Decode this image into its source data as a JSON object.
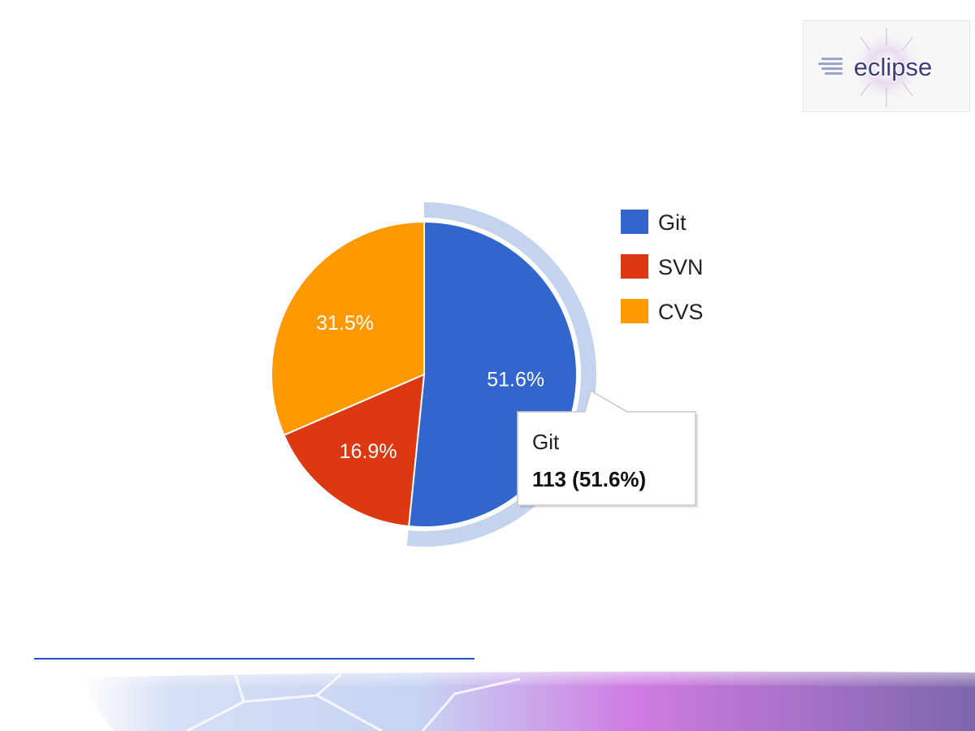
{
  "logo": {
    "text": "eclipse"
  },
  "chart_data": {
    "type": "pie",
    "series": [
      {
        "name": "Git",
        "value": 113,
        "percent": 51.6,
        "color": "#3366cc",
        "label": "51.6%"
      },
      {
        "name": "SVN",
        "percent": 16.9,
        "color": "#dc3912",
        "label": "16.9%"
      },
      {
        "name": "CVS",
        "percent": 31.5,
        "color": "#ff9900",
        "label": "31.5%"
      }
    ],
    "legend": {
      "position": "right",
      "items": [
        "Git",
        "SVN",
        "CVS"
      ]
    },
    "highlighted": "Git",
    "highlight_color": "#c4d4ef",
    "tooltip": {
      "title": "Git",
      "value_text": "113 (51.6%)"
    }
  },
  "footer": {
    "gradient_colors": [
      "#e6ecf8",
      "#b7c7ee",
      "#c86fe0",
      "#7d67ae"
    ]
  }
}
